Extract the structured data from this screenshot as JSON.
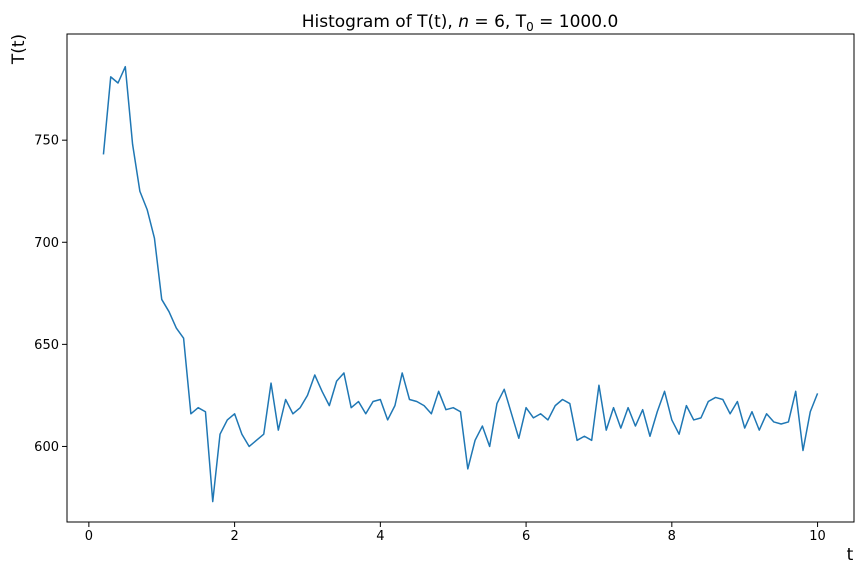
{
  "chart_data": {
    "type": "line",
    "title_parts": {
      "prefix": "Histogram of T(t), ",
      "n_symbol": "n",
      "n_part": " = 6, T",
      "subscript": "0",
      "suffix": " = 1000.0"
    },
    "xlabel": "t",
    "ylabel": "T(t)",
    "xlim": [
      -0.3,
      10.5
    ],
    "ylim": [
      563,
      802
    ],
    "xticks": [
      0,
      2,
      4,
      6,
      8,
      10
    ],
    "yticks": [
      600,
      650,
      700,
      750
    ],
    "color": "#1f77b4",
    "grid": false,
    "series": [
      {
        "x": [
          0.2,
          0.3,
          0.4,
          0.5,
          0.6,
          0.7,
          0.8,
          0.9,
          1.0,
          1.1,
          1.2,
          1.3,
          1.4,
          1.5,
          1.6,
          1.7,
          1.8,
          1.9,
          2.0,
          2.1,
          2.2,
          2.3,
          2.4,
          2.5,
          2.6,
          2.7,
          2.8,
          2.9,
          3.0,
          3.1,
          3.2,
          3.3,
          3.4,
          3.5,
          3.6,
          3.7,
          3.8,
          3.9,
          4.0,
          4.1,
          4.2,
          4.3,
          4.4,
          4.5,
          4.6,
          4.7,
          4.8,
          4.9,
          5.0,
          5.1,
          5.2,
          5.3,
          5.4,
          5.5,
          5.6,
          5.7,
          5.8,
          5.9,
          6.0,
          6.1,
          6.2,
          6.3,
          6.4,
          6.5,
          6.6,
          6.7,
          6.8,
          6.9,
          7.0,
          7.1,
          7.2,
          7.3,
          7.4,
          7.5,
          7.6,
          7.7,
          7.8,
          7.9,
          8.0,
          8.1,
          8.2,
          8.3,
          8.4,
          8.5,
          8.6,
          8.7,
          8.8,
          8.9,
          9.0,
          9.1,
          9.2,
          9.3,
          9.4,
          9.5,
          9.6,
          9.7,
          9.8,
          9.9,
          10.0
        ],
        "y": [
          743,
          781,
          778,
          786,
          748,
          725,
          716,
          702,
          672,
          666,
          658,
          653,
          616,
          619,
          617,
          573,
          606,
          613,
          616,
          606,
          600,
          603,
          606,
          631,
          608,
          623,
          616,
          619,
          625,
          635,
          627,
          620,
          632,
          636,
          619,
          622,
          616,
          622,
          623,
          613,
          620,
          636,
          623,
          622,
          620,
          616,
          627,
          618,
          619,
          617,
          589,
          603,
          610,
          600,
          621,
          628,
          616,
          604,
          619,
          614,
          616,
          613,
          620,
          623,
          621,
          603,
          605,
          603,
          630,
          608,
          619,
          609,
          619,
          610,
          618,
          605,
          617,
          627,
          613,
          606,
          620,
          613,
          614,
          622,
          624,
          623,
          616,
          622,
          609,
          617,
          608,
          616,
          612,
          611,
          612,
          627,
          598,
          617,
          626
        ]
      }
    ]
  }
}
